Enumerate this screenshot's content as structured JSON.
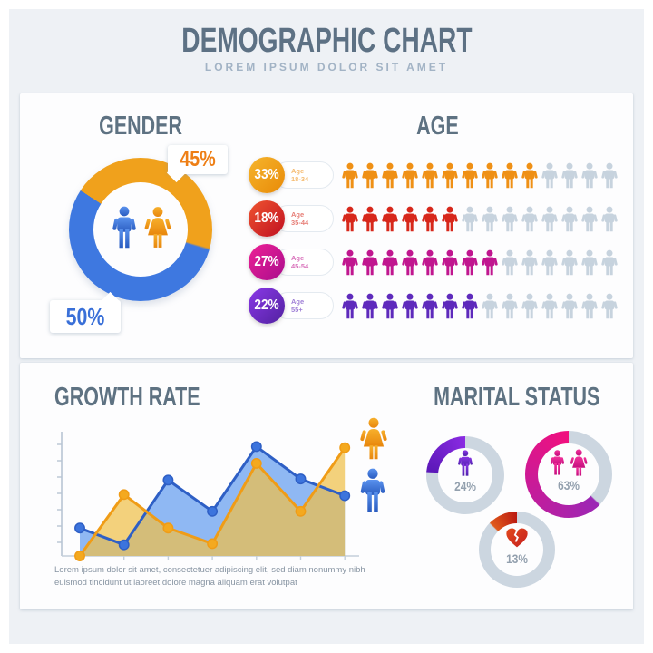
{
  "header": {
    "title": "DEMOGRAPHIC CHART",
    "subtitle": "LOREM IPSUM DOLOR SIT AMET"
  },
  "gender": {
    "heading": "GENDER",
    "female": {
      "label": "45%",
      "value": 45,
      "color": "#f0a11c",
      "text_color": "#ee7f16"
    },
    "male": {
      "label": "50%",
      "value": 50,
      "color": "#3e78e0",
      "text_color": "#3a70d8"
    }
  },
  "age": {
    "heading": "AGE",
    "icons_per_row": 14,
    "empty_color": "#c7d3de",
    "rows": [
      {
        "percent": "33%",
        "value": 33,
        "label_top": "Age",
        "label_bottom": "18-34",
        "badge_from": "#f6b52d",
        "badge_to": "#e88a07",
        "icon_color": "#ef9015",
        "filled": 10
      },
      {
        "percent": "18%",
        "value": 18,
        "label_top": "Age",
        "label_bottom": "35-44",
        "badge_from": "#ef5430",
        "badge_to": "#c01020",
        "icon_color": "#d7271b",
        "filled": 6
      },
      {
        "percent": "27%",
        "value": 27,
        "label_top": "Age",
        "label_bottom": "45-54",
        "badge_from": "#ee2195",
        "badge_to": "#a90d8d",
        "icon_color": "#c0168f",
        "filled": 8
      },
      {
        "percent": "22%",
        "value": 22,
        "label_top": "Age",
        "label_bottom": "55+",
        "badge_from": "#8b39e8",
        "badge_to": "#51219f",
        "icon_color": "#5e2abc",
        "filled": 7
      }
    ]
  },
  "growth": {
    "heading": "GROWTH RATE",
    "caption": "Lorem ipsum dolor sit amet, consectetuer adipiscing elit, sed diam nonummy nibh euismod tincidunt ut laoreet dolore magna aliquam erat volutpat"
  },
  "marital": {
    "heading": "MARITAL STATUS",
    "ring_color": "#ccd6e0",
    "donuts": [
      {
        "percent": "24%",
        "value": 24,
        "icon": "man",
        "arc_from": "#5b18b8",
        "arc_to": "#8a2be2"
      },
      {
        "percent": "63%",
        "value": 63,
        "icon": "couple",
        "arc_from": "#9b27b5",
        "arc_to": "#f1107e"
      },
      {
        "percent": "13%",
        "value": 13,
        "icon": "broken-heart",
        "arc_from": "#e05a1c",
        "arc_to": "#bb1a12"
      }
    ]
  },
  "chart_data": [
    {
      "type": "pie",
      "title": "Gender",
      "donut": true,
      "labels": [
        "Female",
        "Male"
      ],
      "values": [
        45,
        50
      ],
      "colors": [
        "#f0a11c",
        "#3e78e0"
      ]
    },
    {
      "type": "pictogram",
      "title": "Age",
      "categories": [
        "Age 18-34",
        "Age 35-44",
        "Age 45-54",
        "Age 55+"
      ],
      "values": [
        33,
        18,
        27,
        22
      ],
      "icons_filled": [
        10,
        6,
        8,
        7
      ],
      "icons_total": 14,
      "colors": [
        "#ef9015",
        "#d7271b",
        "#c0168f",
        "#5e2abc"
      ]
    },
    {
      "type": "area",
      "title": "Growth Rate",
      "x": [
        1,
        2,
        3,
        4,
        5,
        6,
        7
      ],
      "ylim": [
        0,
        100
      ],
      "grid": false,
      "legend_position": "right",
      "series": [
        {
          "name": "female",
          "color": "#f09c16",
          "dot": "#f4a91f",
          "fill": "rgba(238,191,73,0.72)",
          "values": [
            0,
            55,
            25,
            11,
            83,
            40,
            97
          ]
        },
        {
          "name": "male",
          "color": "#2e5fc5",
          "dot": "#3c74dd",
          "fill": "#8fb8f3",
          "values": [
            25,
            10,
            68,
            40,
            98,
            69,
            54
          ]
        }
      ]
    },
    {
      "type": "pie",
      "title": "Marital Status",
      "donut": true,
      "labels": [
        "man",
        "couple",
        "broken-heart"
      ],
      "values": [
        24,
        63,
        13
      ],
      "colors": [
        "#8a2be2",
        "#f1107e",
        "#bb1a12"
      ]
    }
  ]
}
